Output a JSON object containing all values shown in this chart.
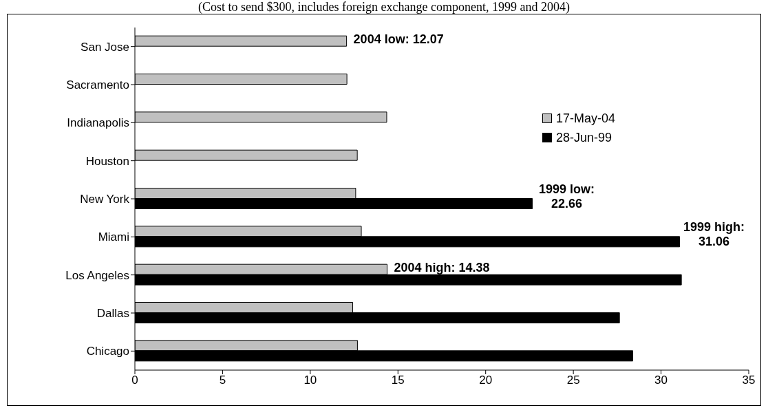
{
  "chart_data": {
    "type": "bar",
    "orientation": "horizontal",
    "subtitle": "(Cost to send $300, includes foreign exchange component, 1999 and 2004)",
    "categories": [
      "San Jose",
      "Sacramento",
      "Indianapolis",
      "Houston",
      "New York",
      "Miami",
      "Los Angeles",
      "Dallas",
      "Chicago"
    ],
    "series": [
      {
        "name": "17-May-04",
        "color": "#c0c0c0",
        "values": [
          12.07,
          12.09,
          14.36,
          12.68,
          12.59,
          12.91,
          14.38,
          12.42,
          12.69
        ]
      },
      {
        "name": "28-Jun-99",
        "color": "#000000",
        "values": [
          null,
          null,
          null,
          null,
          22.66,
          31.06,
          31.16,
          27.63,
          28.39
        ]
      }
    ],
    "xlim": [
      0,
      35
    ],
    "xticks": [
      0,
      5,
      10,
      15,
      20,
      25,
      30,
      35
    ],
    "grid": false,
    "legend": "right",
    "annotations": [
      {
        "text": "2004 low: 12.07",
        "x": 12.07,
        "y": "San Jose"
      },
      {
        "text": "1999 low:\n22.66",
        "x": 22.66,
        "y": "New York"
      },
      {
        "text": "1999 high:\n31.06",
        "x": 31.06,
        "y": "Miami"
      },
      {
        "text": "2004 high: 14.38",
        "x": 14.38,
        "y": "Los Angeles"
      }
    ]
  }
}
